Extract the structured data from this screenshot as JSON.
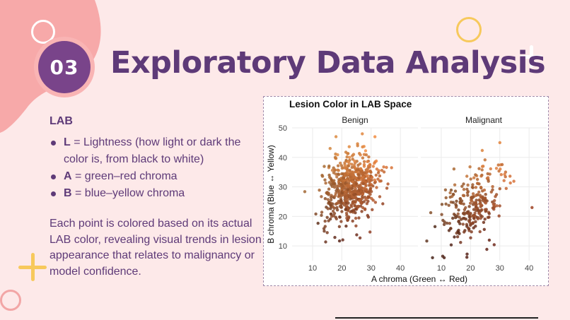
{
  "slide": {
    "number": "03",
    "title": "Exploratory Data Analysis"
  },
  "left": {
    "heading": "LAB",
    "bullets": [
      {
        "term": "L",
        "text": " = Lightness (how light or dark the color is, from black to white)"
      },
      {
        "term": "A",
        "text": " = green–red chroma"
      },
      {
        "term": "B",
        "text": " = blue–yellow chroma"
      }
    ],
    "description": "Each point is colored based on its actual LAB color, revealing visual trends in lesion appearance that relates to malignancy or model confidence."
  },
  "colors": {
    "title": "#5e3a78",
    "badge": "#79448a",
    "badge_ring": "#f9b4b4",
    "background": "#fde9e9",
    "blob": "#f7a9a9"
  },
  "chart_data": {
    "type": "scatter",
    "title": "Lesion Color in LAB Space",
    "xlabel": "A chroma (Green ↔ Red)",
    "ylabel": "B chroma (Blue ↔ Yellow)",
    "xlim": [
      3,
      46
    ],
    "ylim": [
      5,
      50
    ],
    "xticks": [
      10,
      20,
      30,
      40
    ],
    "yticks": [
      10,
      20,
      30,
      40,
      50
    ],
    "grid": true,
    "facets": [
      {
        "name": "Benign",
        "x_center": 23,
        "y_center": 30,
        "x_spread": 4.5,
        "y_spread": 5.5,
        "count": 600,
        "outliers": [
          [
            14,
            15
          ],
          [
            15,
            14.5
          ],
          [
            37,
            36.5
          ],
          [
            18,
            47
          ],
          [
            27,
            48
          ],
          [
            16,
            43
          ]
        ]
      },
      {
        "name": "Malignant",
        "x_center": 21,
        "y_center": 24,
        "x_spread": 5.5,
        "y_spread": 6,
        "count": 260,
        "outliers": [
          [
            10.5,
            6.5
          ],
          [
            11,
            6
          ],
          [
            7,
            6
          ],
          [
            30,
            45
          ],
          [
            41,
            23
          ]
        ]
      }
    ]
  }
}
